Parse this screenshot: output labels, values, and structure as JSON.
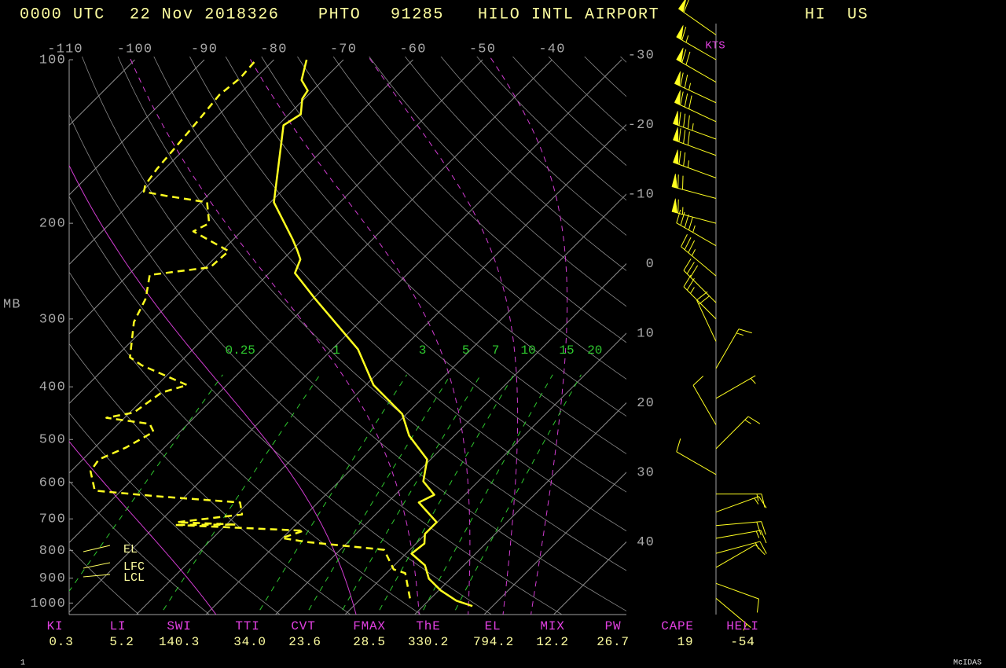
{
  "header": {
    "time": "0000 UTC",
    "date": "22 Nov 2018326",
    "station_id": "PHTO",
    "station_number": "91285",
    "station_name": "HILO INTL AIRPORT",
    "state": "HI",
    "country": "US"
  },
  "chart_data": {
    "type": "skewt",
    "y_label": "MB",
    "ylim": [
      1050,
      100
    ],
    "log_y": true,
    "yticks": [
      100,
      200,
      300,
      400,
      500,
      600,
      700,
      800,
      900,
      1000
    ],
    "xlim": [
      -110,
      -30
    ],
    "xticks": [
      -110,
      -100,
      -90,
      -80,
      -70,
      -60,
      -50,
      -40
    ],
    "x2ticks": [
      -30,
      -20,
      -10,
      0,
      10,
      20,
      30,
      40
    ],
    "isotherm_color": "#8a8a8a",
    "mixing_ratio_lines": [
      0.25,
      1,
      3,
      5,
      7,
      10,
      15,
      20
    ],
    "mixing_ratio_color": "#2ec82e",
    "adiabat_color": "#d23cd2",
    "series": [
      {
        "color": "#ffff20",
        "dashed": false,
        "pressure": [
          100,
          109,
          114,
          118,
          126,
          132,
          183,
          214,
          224,
          233,
          247,
          275,
          341,
          397,
          449,
          492,
          544,
          597,
          632,
          653,
          710,
          746,
          777,
          811,
          852,
          902,
          948,
          990,
          1013
        ],
        "values": [
          -75.3,
          -73.1,
          -70.7,
          -70.3,
          -68.3,
          -69.2,
          -59.5,
          -51.5,
          -49.3,
          -47.5,
          -46.3,
          -39.8,
          -26.3,
          -18.9,
          -10.6,
          -6.5,
          -0.5,
          2.1,
          5.6,
          4.5,
          9.9,
          9.9,
          11.2,
          10.8,
          14.4,
          16.9,
          20.3,
          24.0,
          27.1
        ]
      },
      {
        "color": "#ffff20",
        "dashed": true,
        "pressure": [
          101,
          108,
          116,
          128,
          144,
          159,
          170,
          175,
          178,
          183,
          200,
          207,
          225,
          241,
          249,
          275,
          304,
          353,
          365,
          397,
          410,
          446,
          456,
          468,
          484,
          517,
          544,
          572,
          621,
          636,
          653,
          687,
          710,
          717,
          718,
          736,
          759,
          772,
          798,
          867,
          881,
          973,
          1000
        ],
        "values": [
          -82.5,
          -82.2,
          -82.8,
          -82.2,
          -81.6,
          -81.1,
          -80.5,
          -79.7,
          -76.0,
          -69.1,
          -65.8,
          -66.9,
          -59.0,
          -59.3,
          -66.9,
          -64.1,
          -62.4,
          -57.9,
          -55.1,
          -45.7,
          -48.3,
          -49.4,
          -52.6,
          -45.5,
          -43.8,
          -45.5,
          -47.7,
          -47.2,
          -43.8,
          -34.0,
          -21.2,
          -19.2,
          -27.4,
          -18.6,
          -27.4,
          -8.0,
          -10.1,
          -5.9,
          6.3,
          10.5,
          12.7,
          16.7,
          17.8
        ]
      }
    ],
    "winds": {
      "units_label": "KTS",
      "color": "#ffff20",
      "pressure": [
        90,
        100,
        110,
        120,
        130,
        140,
        150,
        165,
        180,
        200,
        220,
        250,
        280,
        300,
        330,
        370,
        420,
        470,
        520,
        580,
        630,
        680,
        720,
        760,
        810,
        860,
        920,
        980
      ],
      "direction": [
        305,
        300,
        300,
        295,
        295,
        290,
        290,
        290,
        285,
        285,
        300,
        310,
        315,
        315,
        335,
        30,
        60,
        330,
        45,
        300,
        90,
        70,
        85,
        80,
        75,
        60,
        110,
        130
      ],
      "speed": [
        60,
        65,
        70,
        75,
        80,
        85,
        80,
        75,
        70,
        65,
        45,
        35,
        30,
        25,
        20,
        15,
        5,
        10,
        15,
        10,
        15,
        15,
        20,
        15,
        15,
        10,
        10,
        5
      ]
    },
    "levels_legend": [
      "EL",
      "LFC",
      "LCL"
    ]
  },
  "indices": [
    {
      "label": "KI",
      "value": "0.3"
    },
    {
      "label": "LI",
      "value": "5.2"
    },
    {
      "label": "SWI",
      "value": "140.3"
    },
    {
      "label": "TTI",
      "value": "34.0"
    },
    {
      "label": "CVT",
      "value": "23.6"
    },
    {
      "label": "FMAX",
      "value": "28.5"
    },
    {
      "label": "ThE",
      "value": "330.2"
    },
    {
      "label": "EL",
      "value": "794.2"
    },
    {
      "label": "MIX",
      "value": "12.2"
    },
    {
      "label": "PW",
      "value": "26.7"
    },
    {
      "label": "CAPE",
      "value": "19"
    },
    {
      "label": "HELI",
      "value": "-54"
    }
  ],
  "footer": {
    "page": "1",
    "source": "McIDAS"
  }
}
